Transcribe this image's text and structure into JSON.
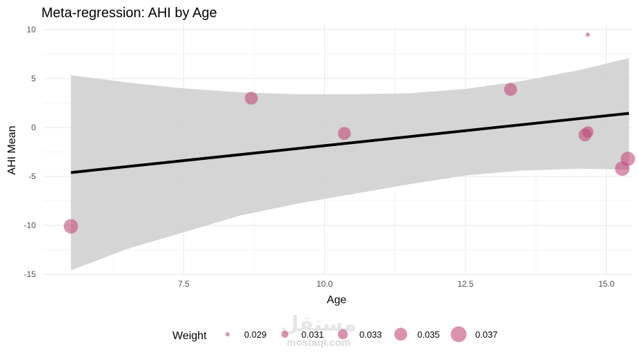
{
  "chart_data": {
    "type": "scatter",
    "title": "Meta-regression: AHI by Age",
    "xlabel": "Age",
    "ylabel": "AHI Mean",
    "xlim": [
      5.0,
      15.45
    ],
    "ylim": [
      -15.0,
      10.5
    ],
    "x_ticks": [
      7.5,
      10.0,
      12.5,
      15.0
    ],
    "x_tick_labels": [
      "7.5",
      "10.0",
      "12.5",
      "15.0"
    ],
    "y_ticks": [
      -15,
      -10,
      -5,
      0,
      5,
      10
    ],
    "y_tick_labels": [
      "-15",
      "-10",
      "-5",
      "0",
      "5",
      "10"
    ],
    "grid": true,
    "points": [
      {
        "x": 5.5,
        "y": -10.1,
        "weight": 0.036
      },
      {
        "x": 8.7,
        "y": 3.0,
        "weight": 0.035
      },
      {
        "x": 10.35,
        "y": -0.6,
        "weight": 0.035
      },
      {
        "x": 13.3,
        "y": 3.9,
        "weight": 0.035
      },
      {
        "x": 14.62,
        "y": -0.75,
        "weight": 0.035
      },
      {
        "x": 14.67,
        "y": -0.45,
        "weight": 0.034
      },
      {
        "x": 14.67,
        "y": 9.5,
        "weight": 0.029
      },
      {
        "x": 15.28,
        "y": -4.2,
        "weight": 0.036
      },
      {
        "x": 15.38,
        "y": -3.2,
        "weight": 0.036
      }
    ],
    "regression_line": {
      "x": [
        5.5,
        15.4
      ],
      "y": [
        -4.6,
        1.45
      ]
    },
    "confidence_band": {
      "x": [
        5.5,
        6.5,
        7.5,
        8.5,
        9.5,
        10.5,
        11.5,
        12.5,
        13.5,
        14.5,
        15.4
      ],
      "upper": [
        5.35,
        4.6,
        4.0,
        3.6,
        3.4,
        3.4,
        3.5,
        3.95,
        4.75,
        5.85,
        7.1
      ],
      "lower": [
        -14.6,
        -12.4,
        -10.7,
        -9.0,
        -7.8,
        -6.8,
        -5.8,
        -4.9,
        -4.4,
        -4.2,
        -4.3
      ]
    },
    "colors": {
      "point": "#c2497a",
      "line": "#000000",
      "band": "#d3d3d3",
      "grid_major": "#ebebeb",
      "grid_minor": "#f3f3f3"
    },
    "legend": {
      "title": "Weight",
      "position": "bottom",
      "entries": [
        {
          "label": "0.029",
          "weight": 0.029
        },
        {
          "label": "0.031",
          "weight": 0.031
        },
        {
          "label": "0.033",
          "weight": 0.033
        },
        {
          "label": "0.035",
          "weight": 0.035
        },
        {
          "label": "0.037",
          "weight": 0.037
        }
      ]
    }
  },
  "watermark": {
    "arabic": "مستقل",
    "latin": "mostaql.com"
  }
}
